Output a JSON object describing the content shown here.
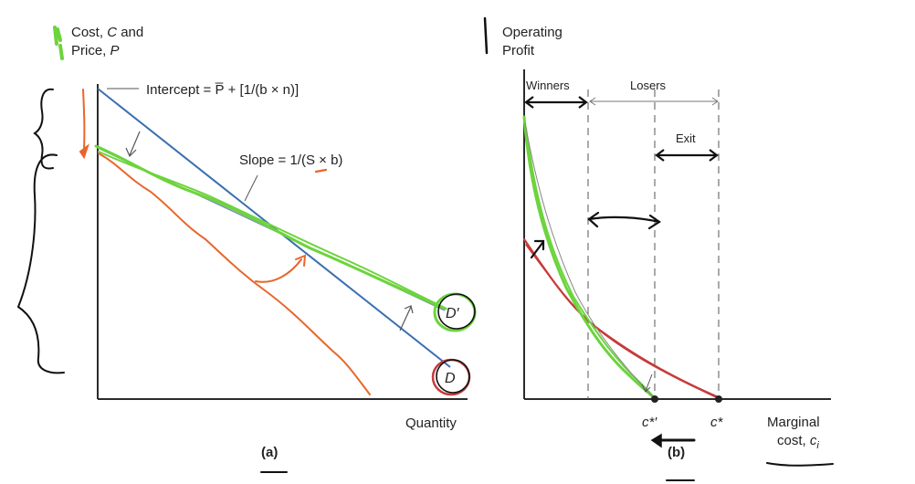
{
  "left_panel": {
    "y_axis_line1_a": "Cost, ",
    "y_axis_line1_b": "C",
    "y_axis_line1_c": " and",
    "y_axis_line2_a": "Price, ",
    "y_axis_line2_b": "P",
    "intercept_label": "Intercept = P̅ + [1/(b × n)]",
    "slope_label": "Slope = 1/(S × b)",
    "d_prime_label": "D′",
    "d_label": "D",
    "x_axis_label": "Quantity",
    "caption": "(a)"
  },
  "right_panel": {
    "y_axis_line1": "Operating",
    "y_axis_line2": "Profit",
    "winners_label": "Winners",
    "losers_label": "Losers",
    "exit_label": "Exit",
    "c_star_prime_label": "c*′",
    "c_star_label": "c*",
    "x_axis_line1": "Marginal",
    "x_axis_line2_a": "cost, ",
    "x_axis_line2_b": "c",
    "x_axis_line2_sub": "i",
    "caption": "(b)"
  },
  "colors": {
    "axis": "#2b2b2b",
    "demand_blue": "#3a6fb0",
    "ink_green": "#6cd43c",
    "ink_orange": "#e8662a",
    "ink_red": "#c83a3a",
    "ink_black": "#111111"
  }
}
